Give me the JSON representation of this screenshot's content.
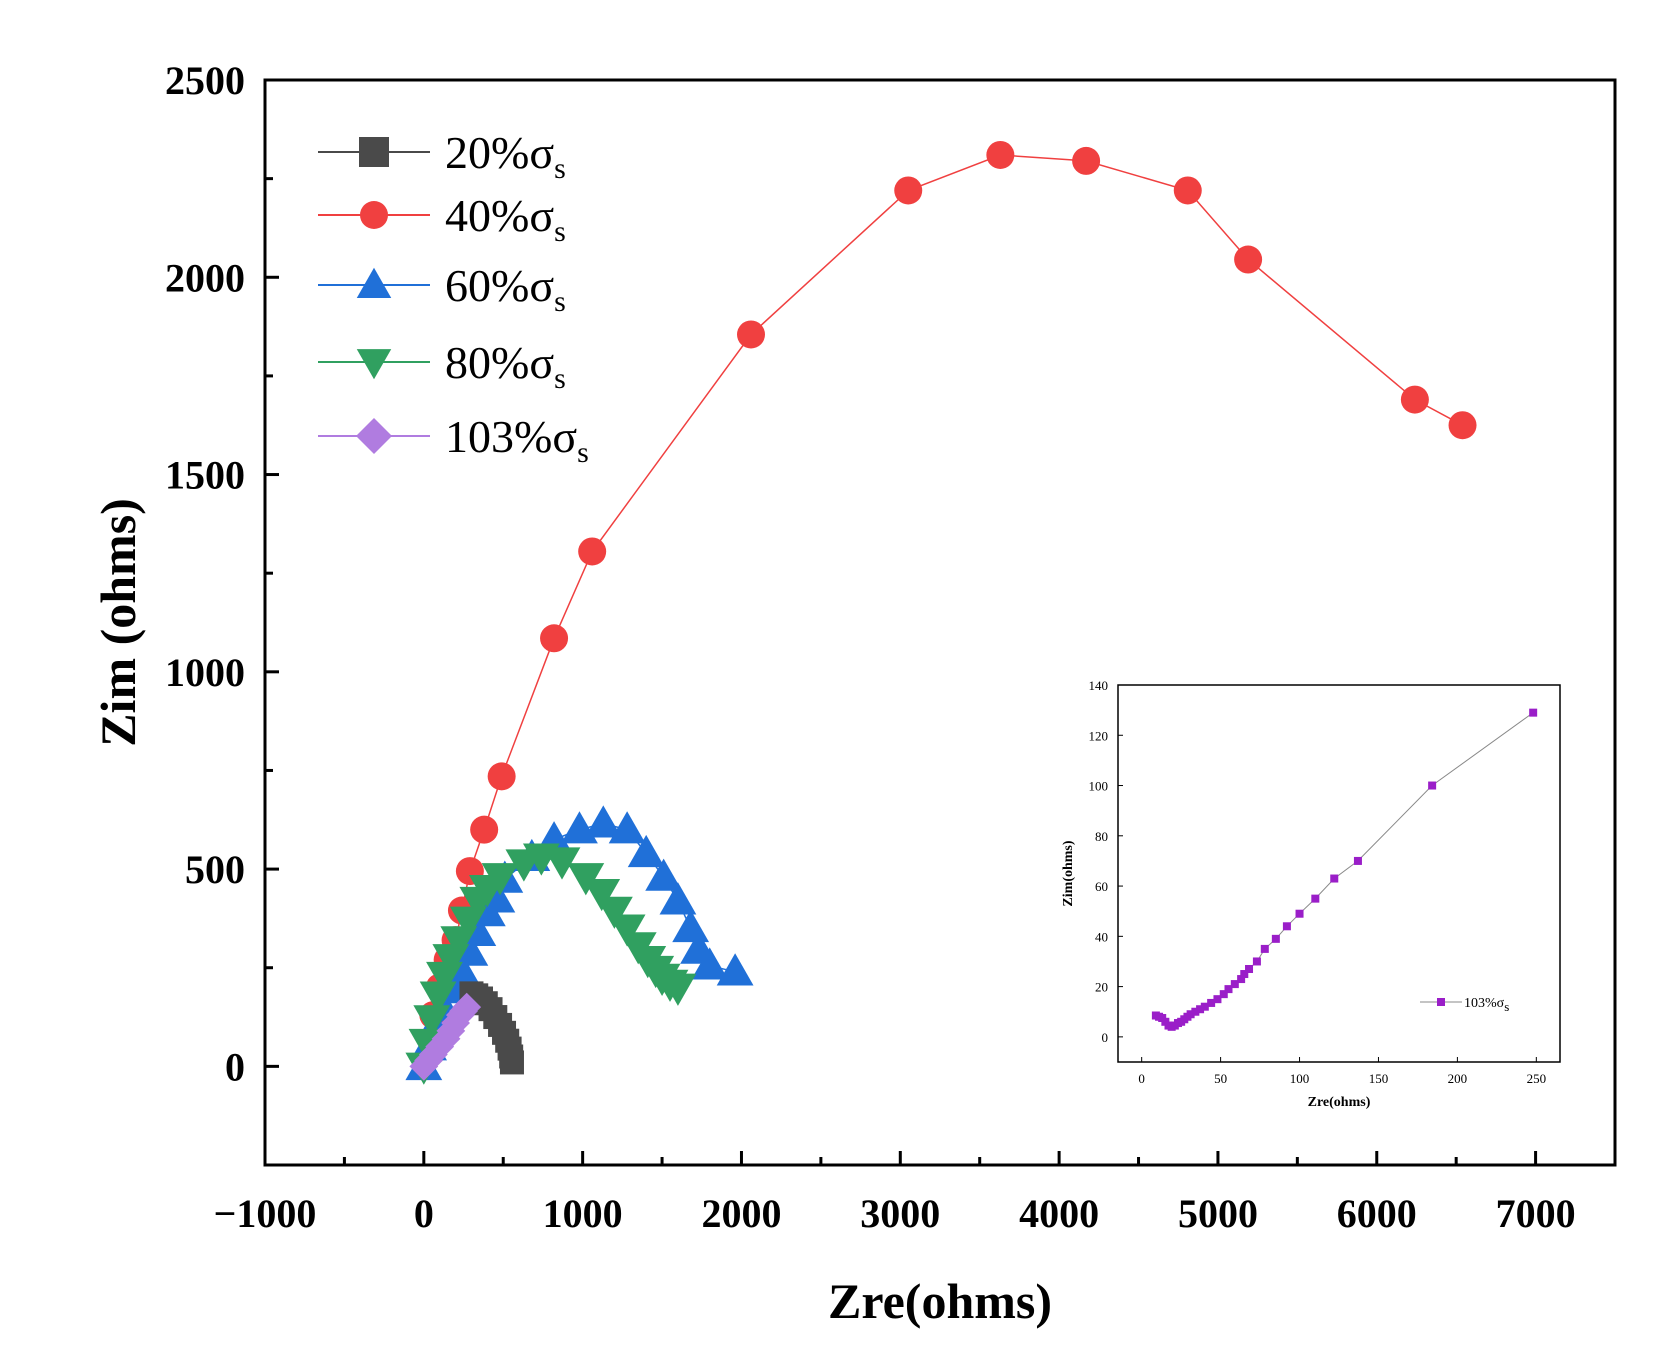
{
  "chart_data": [
    {
      "type": "scatter",
      "xlabel": "Zre(ohms)",
      "ylabel": "Zim (ohms)",
      "xlim": [
        -1000,
        7500
      ],
      "ylim": [
        -250,
        2500
      ],
      "xticks": [
        -1000,
        0,
        1000,
        2000,
        3000,
        4000,
        5000,
        6000,
        7000
      ],
      "yticks": [
        0,
        500,
        1000,
        1500,
        2000,
        2500
      ],
      "xtick_labels": [
        "−1000",
        "0",
        "1000",
        "2000",
        "3000",
        "4000",
        "5000",
        "6000",
        "7000"
      ],
      "ytick_labels": [
        "0",
        "500",
        "1000",
        "1500",
        "2000",
        "2500"
      ],
      "legend_position": "top-left",
      "series": [
        {
          "name": "20%σ",
          "name_sub": "s",
          "color": "#4a4a4a",
          "marker": "square",
          "points": [
            [
              300,
              185
            ],
            [
              330,
              180
            ],
            [
              360,
              172
            ],
            [
              390,
              160
            ],
            [
              420,
              145
            ],
            [
              450,
              125
            ],
            [
              480,
              105
            ],
            [
              505,
              85
            ],
            [
              525,
              65
            ],
            [
              540,
              45
            ],
            [
              550,
              25
            ],
            [
              555,
              10
            ]
          ]
        },
        {
          "name": "40%σ",
          "name_sub": "s",
          "color": "#f04040",
          "marker": "circle",
          "points": [
            [
              60,
              130
            ],
            [
              100,
              200
            ],
            [
              150,
              270
            ],
            [
              200,
              320
            ],
            [
              240,
              395
            ],
            [
              290,
              495
            ],
            [
              380,
              600
            ],
            [
              490,
              735
            ],
            [
              820,
              1085
            ],
            [
              1060,
              1305
            ],
            [
              2060,
              1855
            ],
            [
              3050,
              2220
            ],
            [
              3630,
              2310
            ],
            [
              4170,
              2295
            ],
            [
              4810,
              2220
            ],
            [
              5190,
              2045
            ],
            [
              6240,
              1690
            ],
            [
              6540,
              1625
            ]
          ]
        },
        {
          "name": "60%σ",
          "name_sub": "s",
          "color": "#2070d8",
          "marker": "triangle-up",
          "points": [
            [
              0,
              0
            ],
            [
              30,
              50
            ],
            [
              70,
              100
            ],
            [
              120,
              150
            ],
            [
              180,
              195
            ],
            [
              240,
              240
            ],
            [
              290,
              290
            ],
            [
              340,
              340
            ],
            [
              400,
              390
            ],
            [
              460,
              425
            ],
            [
              510,
              475
            ],
            [
              680,
              530
            ],
            [
              820,
              575
            ],
            [
              980,
              600
            ],
            [
              1130,
              615
            ],
            [
              1280,
              600
            ],
            [
              1400,
              540
            ],
            [
              1510,
              480
            ],
            [
              1600,
              420
            ],
            [
              1680,
              350
            ],
            [
              1730,
              295
            ],
            [
              1800,
              255
            ],
            [
              1960,
              240
            ]
          ]
        },
        {
          "name": "80%σ",
          "name_sub": "s",
          "color": "#30a060",
          "marker": "triangle-down",
          "points": [
            [
              0,
              0
            ],
            [
              20,
              60
            ],
            [
              50,
              120
            ],
            [
              90,
              180
            ],
            [
              130,
              230
            ],
            [
              170,
              275
            ],
            [
              220,
              320
            ],
            [
              280,
              370
            ],
            [
              340,
              420
            ],
            [
              400,
              450
            ],
            [
              480,
              480
            ],
            [
              630,
              515
            ],
            [
              740,
              530
            ],
            [
              870,
              520
            ],
            [
              1020,
              480
            ],
            [
              1120,
              440
            ],
            [
              1200,
              395
            ],
            [
              1280,
              350
            ],
            [
              1350,
              305
            ],
            [
              1410,
              270
            ],
            [
              1460,
              245
            ],
            [
              1500,
              225
            ],
            [
              1550,
              210
            ],
            [
              1600,
              200
            ]
          ]
        },
        {
          "name": "103%σ",
          "name_sub": "s",
          "color": "#b07ce0",
          "marker": "diamond",
          "points": [
            [
              0,
              0
            ],
            [
              30,
              15
            ],
            [
              60,
              30
            ],
            [
              100,
              50
            ],
            [
              140,
              70
            ],
            [
              170,
              90
            ],
            [
              200,
              110
            ],
            [
              230,
              130
            ],
            [
              250,
              140
            ],
            [
              270,
              150
            ]
          ]
        }
      ]
    },
    {
      "type": "scatter",
      "xlabel": "Zre(ohms)",
      "ylabel": "Zim(ohms)",
      "xlim": [
        -15,
        265
      ],
      "ylim": [
        -10,
        140
      ],
      "xticks": [
        0,
        50,
        100,
        150,
        200,
        250
      ],
      "yticks": [
        0,
        20,
        40,
        60,
        80,
        100,
        120,
        140
      ],
      "xtick_labels": [
        "0",
        "50",
        "100",
        "150",
        "200",
        "250"
      ],
      "ytick_labels": [
        "0",
        "20",
        "40",
        "60",
        "80",
        "100",
        "120",
        "140"
      ],
      "legend_position": "bottom-right",
      "series": [
        {
          "name": "103%σ",
          "name_sub": "s",
          "color": "#9a1ec8",
          "line_color": "#888888",
          "marker": "square",
          "points": [
            [
              9,
              8.5
            ],
            [
              11,
              8
            ],
            [
              13,
              7.5
            ],
            [
              15,
              6
            ],
            [
              17,
              4.5
            ],
            [
              19,
              4
            ],
            [
              21,
              4.5
            ],
            [
              23,
              5.5
            ],
            [
              25,
              6
            ],
            [
              27,
              7
            ],
            [
              29,
              8
            ],
            [
              31,
              9
            ],
            [
              34,
              10
            ],
            [
              37,
              11
            ],
            [
              40,
              12
            ],
            [
              44,
              13.5
            ],
            [
              48,
              15
            ],
            [
              52,
              17
            ],
            [
              55,
              19
            ],
            [
              59,
              21
            ],
            [
              63,
              23
            ],
            [
              65,
              25
            ],
            [
              68,
              27
            ],
            [
              73,
              30
            ],
            [
              78,
              35
            ],
            [
              85,
              39
            ],
            [
              92,
              44
            ],
            [
              100,
              49
            ],
            [
              110,
              55
            ],
            [
              122,
              63
            ],
            [
              137,
              70
            ],
            [
              184,
              100
            ],
            [
              248,
              129
            ]
          ]
        }
      ]
    }
  ]
}
